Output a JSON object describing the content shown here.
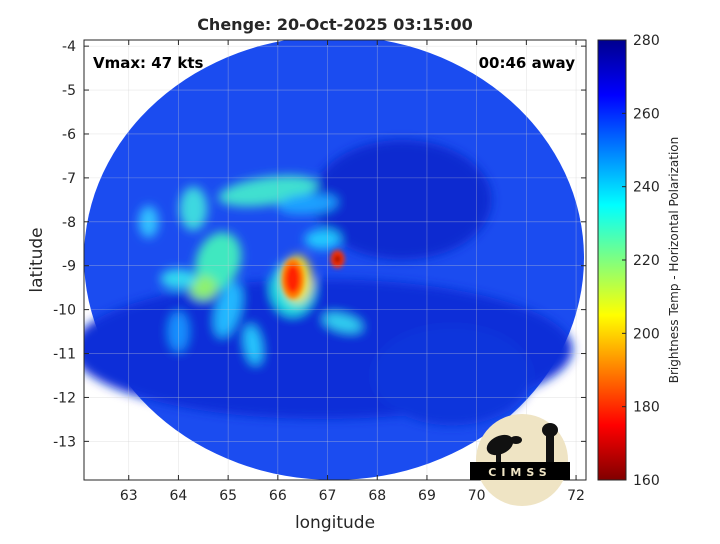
{
  "chart_data": {
    "type": "heatmap",
    "title": "Chenge: 20-Oct-2025 03:15:00",
    "xlabel": "longitude",
    "ylabel": "latitude",
    "xlim": [
      62.1,
      72.2
    ],
    "ylim": [
      -13.88,
      -3.86
    ],
    "xticks": [
      "63",
      "64",
      "65",
      "66",
      "67",
      "68",
      "69",
      "70",
      "71",
      "72"
    ],
    "yticks": [
      "-4",
      "-5",
      "-6",
      "-7",
      "-8",
      "-9",
      "-10",
      "-11",
      "-12",
      "-13"
    ],
    "grid": true,
    "colormap": "jet",
    "colorbar": {
      "label": "Brightness Temp - Horizontal Polarization",
      "range": [
        160,
        280
      ],
      "ticks": [
        "160",
        "180",
        "200",
        "220",
        "240",
        "260",
        "280"
      ]
    },
    "annotations": {
      "vmax": "Vmax: 47 kts",
      "time_offset": "00:46 away"
    }
  },
  "logo": {
    "text": "CIMSS"
  }
}
